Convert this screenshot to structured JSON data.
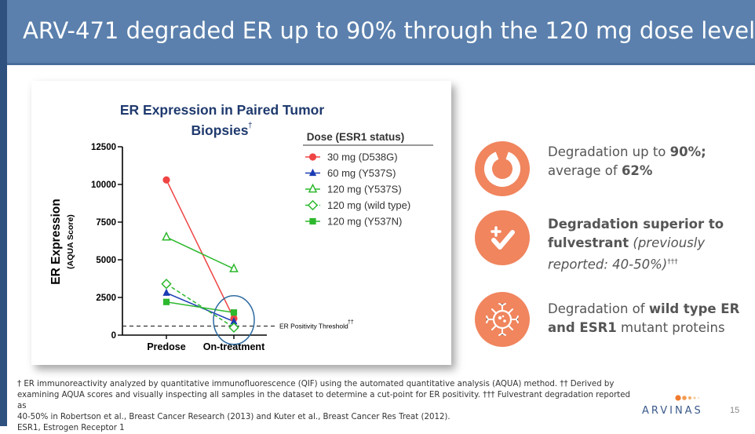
{
  "slide": {
    "title": "ARV-471 degraded ER up to 90% through the 120 mg dose level",
    "page_number": "15"
  },
  "colors": {
    "header_bg": "#5b80ad",
    "accent_orange": "#f0855e",
    "series_red": "#ef4444",
    "series_blue": "#1a3bb3",
    "series_green": "#2db82d"
  },
  "chart_data": {
    "type": "line",
    "title_line1": "ER Expression in Paired Tumor",
    "title_line2": "Biopsies",
    "title_sup": "†",
    "ylabel": "ER Expression",
    "ylabel_sub": "(AQUA Score)",
    "ylim": [
      0,
      12500
    ],
    "yticks": [
      "0",
      "2500",
      "5000",
      "7500",
      "10000",
      "12500"
    ],
    "ytick_values": [
      0,
      2500,
      5000,
      7500,
      10000,
      12500
    ],
    "categories": [
      "Predose",
      "On-treatment"
    ],
    "legend_title": "Dose (ESR1 status)",
    "series": [
      {
        "name": "30 mg (D538G)",
        "values": [
          10300,
          1100
        ],
        "color": "#ef4444",
        "marker": "circle",
        "dashed": false
      },
      {
        "name": "60 mg (Y537S)",
        "values": [
          2800,
          900
        ],
        "color": "#1a3bb3",
        "marker": "triangle",
        "dashed": false
      },
      {
        "name": "120 mg (Y537S)",
        "values": [
          6500,
          4400
        ],
        "color": "#2db82d",
        "marker": "triangle-open",
        "dashed": false
      },
      {
        "name": "120 mg (wild type)",
        "values": [
          3400,
          500
        ],
        "color": "#2db82d",
        "marker": "diamond-open",
        "dashed": true
      },
      {
        "name": "120 mg (Y537N)",
        "values": [
          2200,
          1500
        ],
        "color": "#2db82d",
        "marker": "square",
        "dashed": false
      }
    ],
    "threshold": {
      "value": 600,
      "label": "ER Positivity Threshold",
      "sup": "††"
    }
  },
  "features": [
    {
      "icon": "donut-chart-icon",
      "pre": "Degradation up to ",
      "b1": "90%;",
      "mid": " average of ",
      "b2": "62%"
    },
    {
      "icon": "plus-check-icon",
      "b1": "Degradation superior to fulvestrant",
      "i1": " (previously reported: 40-50%)",
      "sup": "†††"
    },
    {
      "icon": "degraded-cell-icon",
      "pre": "Degradation of ",
      "b1": "wild type ER",
      "mid": "",
      "b2": "and ESR1",
      "post": " mutant proteins"
    }
  ],
  "footnotes": {
    "line1": "† ER immunoreactivity analyzed by quantitative immunofluorescence (QIF) using the automated quantitative analysis (AQUA) method. †† Derived by",
    "line2": "examining AQUA scores and visually inspecting all samples in the dataset to determine a cut-point for ER positivity. ††† Fulvestrant degradation reported as",
    "line3": "40-50% in Robertson et al., Breast Cancer Research (2013) and Kuter et al., Breast Cancer Res Treat (2012).",
    "line4": "ESR1, Estrogen Receptor 1"
  },
  "logo": {
    "text": "ARVINAS"
  }
}
